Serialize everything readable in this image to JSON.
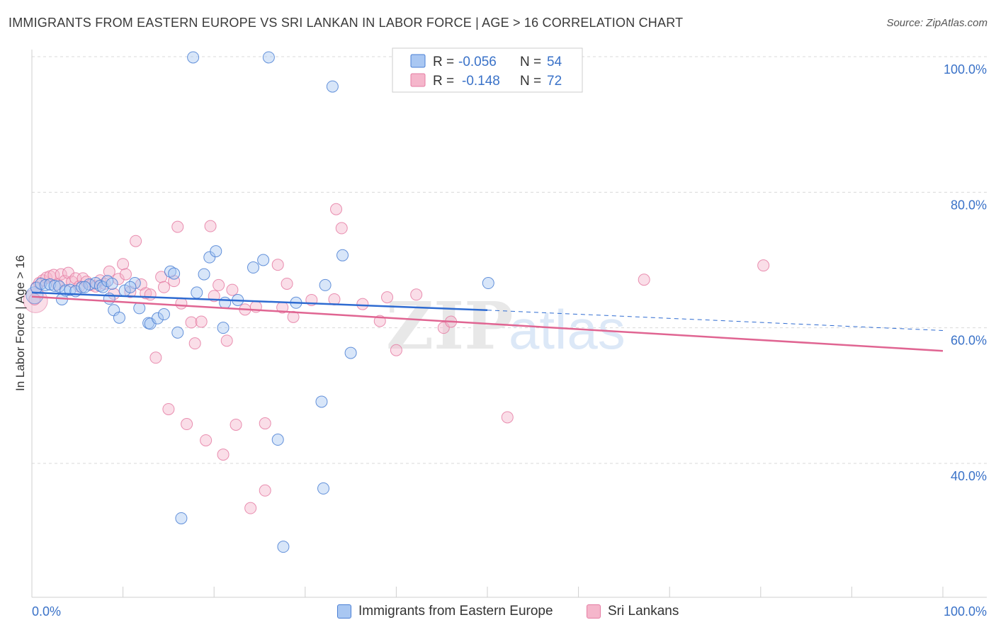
{
  "title": "IMMIGRANTS FROM EASTERN EUROPE VS SRI LANKAN IN LABOR FORCE | AGE > 16 CORRELATION CHART",
  "source": "Source: ZipAtlas.com",
  "watermark": {
    "zip": "ZIP",
    "atlas": "atlas"
  },
  "colors": {
    "blue": "#4a7fd4",
    "blue_fill": "#a9c7f2",
    "blue_line": "#2e6bd1",
    "pink": "#e57ca3",
    "pink_fill": "#f5b6cb",
    "pink_line": "#e06592",
    "axis_label": "#3a72c8",
    "grid": "#d9d9d9"
  },
  "stats_legend": [
    {
      "r_label": "R =",
      "r_value": "-0.056",
      "n_label": "N =",
      "n_value": "54",
      "series": "blue"
    },
    {
      "r_label": "R =",
      "r_value": "-0.148",
      "n_label": "N =",
      "n_value": "72",
      "series": "pink"
    }
  ],
  "chart_data": {
    "type": "scatter",
    "title": "IMMIGRANTS FROM EASTERN EUROPE VS SRI LANKAN IN LABOR FORCE | AGE > 16 CORRELATION CHART",
    "xlabel": "",
    "ylabel": "In Labor Force | Age > 16",
    "xlim": [
      0,
      100
    ],
    "ylim": [
      20,
      101
    ],
    "x_tick_labels": [
      "0.0%",
      "100.0%"
    ],
    "y_ticks": [
      40,
      60,
      80,
      100
    ],
    "y_tick_labels": [
      "40.0%",
      "60.0%",
      "80.0%",
      "100.0%"
    ],
    "grid": true,
    "legend_position": "bottom",
    "series": [
      {
        "name": "Immigrants from Eastern Europe",
        "color": "#4a7fd4",
        "r": -0.056,
        "n": 54,
        "trend": {
          "x0": 0,
          "y0": 65.2,
          "x1": 50,
          "y1": 62.6,
          "dashed_to_x": 100,
          "dashed_to_y": 59.6
        },
        "points": [
          [
            0.5,
            65.9
          ],
          [
            1.0,
            66.5
          ],
          [
            1.5,
            66.3
          ],
          [
            2.0,
            66.4
          ],
          [
            2.5,
            66.2
          ],
          [
            3.0,
            66.1
          ],
          [
            3.3,
            64.2
          ],
          [
            3.7,
            65.5
          ],
          [
            4.2,
            65.6
          ],
          [
            4.8,
            65.4
          ],
          [
            5.5,
            66.0
          ],
          [
            6.3,
            66.4
          ],
          [
            7.0,
            66.6
          ],
          [
            7.5,
            66.2
          ],
          [
            7.8,
            66.0
          ],
          [
            8.3,
            66.9
          ],
          [
            8.5,
            64.3
          ],
          [
            9.0,
            62.6
          ],
          [
            9.6,
            61.5
          ],
          [
            10.2,
            65.5
          ],
          [
            11.3,
            66.6
          ],
          [
            11.8,
            62.9
          ],
          [
            12.8,
            60.7
          ],
          [
            13.0,
            60.6
          ],
          [
            13.8,
            61.4
          ],
          [
            15.2,
            68.3
          ],
          [
            15.6,
            68.0
          ],
          [
            16.0,
            59.3
          ],
          [
            17.7,
            99.9
          ],
          [
            18.1,
            65.2
          ],
          [
            18.9,
            67.9
          ],
          [
            19.5,
            70.4
          ],
          [
            20.2,
            71.3
          ],
          [
            21.0,
            60.0
          ],
          [
            21.2,
            63.7
          ],
          [
            22.6,
            64.1
          ],
          [
            24.3,
            68.9
          ],
          [
            25.4,
            70.0
          ],
          [
            26.0,
            99.9
          ],
          [
            27.0,
            43.5
          ],
          [
            27.6,
            27.7
          ],
          [
            29.0,
            63.7
          ],
          [
            31.8,
            49.1
          ],
          [
            32.2,
            66.3
          ],
          [
            33.0,
            95.6
          ],
          [
            34.1,
            70.7
          ],
          [
            35.0,
            56.3
          ],
          [
            50.1,
            66.6
          ],
          [
            16.4,
            31.9
          ],
          [
            32.0,
            36.3
          ],
          [
            5.8,
            66.0
          ],
          [
            8.8,
            66.5
          ],
          [
            14.5,
            62.0
          ],
          [
            10.8,
            66.0
          ]
        ]
      },
      {
        "name": "Sri Lankans",
        "color": "#e57ca3",
        "r": -0.148,
        "n": 72,
        "trend": {
          "x0": 0,
          "y0": 64.6,
          "x1": 100,
          "y1": 56.6
        },
        "points": [
          [
            0.3,
            64.2
          ],
          [
            0.5,
            66.0
          ],
          [
            0.8,
            66.6
          ],
          [
            1.2,
            67.0
          ],
          [
            1.6,
            67.4
          ],
          [
            2.0,
            67.6
          ],
          [
            2.4,
            67.8
          ],
          [
            2.8,
            66.4
          ],
          [
            3.2,
            67.9
          ],
          [
            3.6,
            66.9
          ],
          [
            4.0,
            68.1
          ],
          [
            4.4,
            66.8
          ],
          [
            4.8,
            67.3
          ],
          [
            5.2,
            66.1
          ],
          [
            5.6,
            67.3
          ],
          [
            6.0,
            66.8
          ],
          [
            6.5,
            66.3
          ],
          [
            7.0,
            66.1
          ],
          [
            7.5,
            67.0
          ],
          [
            8.0,
            66.5
          ],
          [
            8.5,
            68.3
          ],
          [
            9.0,
            65.0
          ],
          [
            9.5,
            67.2
          ],
          [
            10.0,
            69.4
          ],
          [
            10.3,
            67.9
          ],
          [
            10.8,
            65.3
          ],
          [
            11.4,
            72.8
          ],
          [
            12.0,
            66.4
          ],
          [
            12.5,
            65.1
          ],
          [
            13.0,
            64.9
          ],
          [
            13.6,
            55.6
          ],
          [
            14.2,
            67.5
          ],
          [
            14.5,
            66.0
          ],
          [
            15.0,
            48.0
          ],
          [
            15.6,
            66.9
          ],
          [
            16.0,
            74.9
          ],
          [
            16.4,
            63.6
          ],
          [
            17.0,
            45.8
          ],
          [
            17.5,
            60.8
          ],
          [
            17.9,
            57.7
          ],
          [
            18.6,
            60.9
          ],
          [
            19.1,
            43.4
          ],
          [
            19.6,
            75.0
          ],
          [
            20.0,
            64.7
          ],
          [
            20.5,
            66.3
          ],
          [
            21.0,
            41.3
          ],
          [
            21.4,
            58.1
          ],
          [
            22.0,
            65.6
          ],
          [
            22.4,
            45.7
          ],
          [
            23.4,
            62.7
          ],
          [
            24.0,
            33.4
          ],
          [
            24.6,
            63.1
          ],
          [
            25.6,
            36.0
          ],
          [
            27.0,
            69.3
          ],
          [
            27.5,
            63.0
          ],
          [
            28.0,
            66.5
          ],
          [
            28.7,
            61.6
          ],
          [
            30.7,
            64.1
          ],
          [
            33.2,
            64.2
          ],
          [
            33.4,
            77.5
          ],
          [
            34.0,
            74.7
          ],
          [
            36.3,
            63.5
          ],
          [
            38.2,
            61.0
          ],
          [
            39.0,
            64.5
          ],
          [
            40.0,
            56.7
          ],
          [
            42.2,
            64.9
          ],
          [
            45.2,
            60.0
          ],
          [
            46.0,
            60.9
          ],
          [
            52.2,
            46.8
          ],
          [
            67.2,
            67.1
          ],
          [
            80.3,
            69.2
          ],
          [
            25.6,
            45.9
          ]
        ]
      }
    ]
  },
  "bottom_legend": [
    {
      "label": "Immigrants from Eastern Europe",
      "series": "blue"
    },
    {
      "label": "Sri Lankans",
      "series": "pink"
    }
  ]
}
